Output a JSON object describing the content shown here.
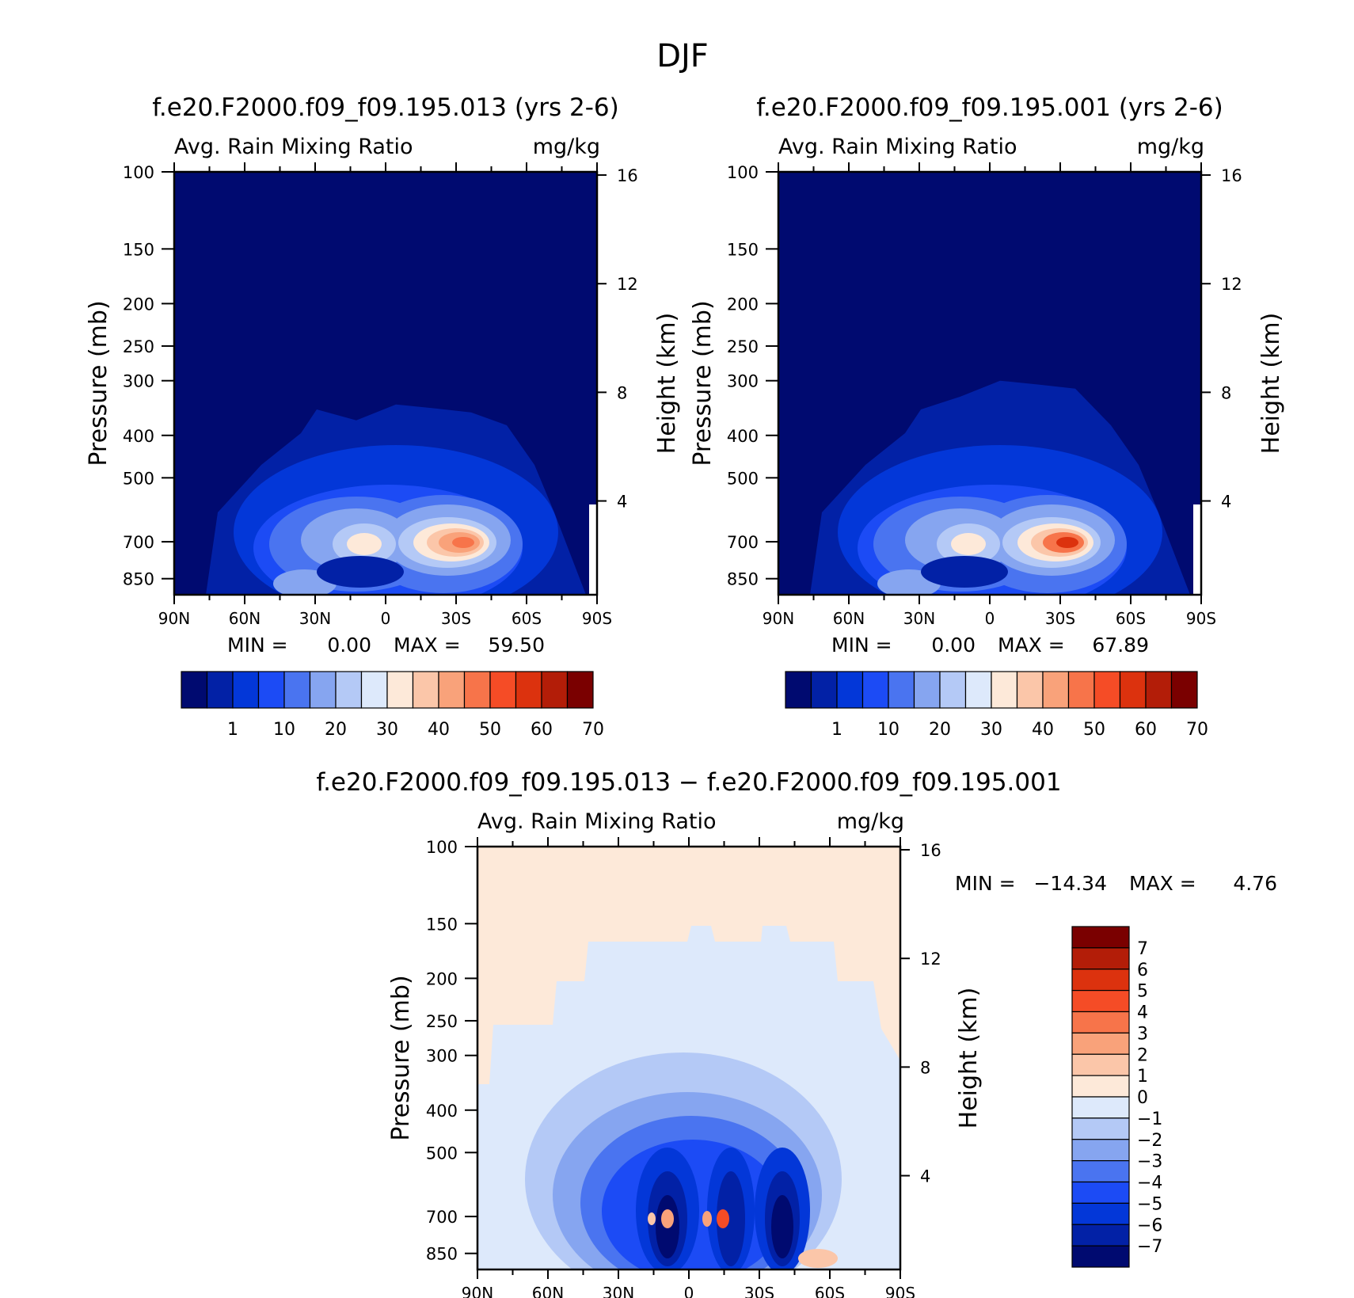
{
  "figure": {
    "title": "DJF",
    "panel_top_left_title": "f.e20.F2000.f09_f09.195.013 (yrs 2-6)",
    "panel_top_right_title": "f.e20.F2000.f09_f09.195.001 (yrs 2-6)",
    "panel_bottom_title": "f.e20.F2000.f09_f09.195.013 − f.e20.F2000.f09_f09.195.001"
  },
  "colors": {
    "abs_scale": [
      "#000a70",
      "#0221a6",
      "#0337d8",
      "#1c4bf5",
      "#4a74f0",
      "#86a5f0",
      "#b4c9f6",
      "#dde9fb",
      "#fde9d9",
      "#fbc6a9",
      "#f9a27a",
      "#f7744a",
      "#f54c26",
      "#dc320e",
      "#b31d08",
      "#7a0000"
    ],
    "diff_scale": [
      "#000a70",
      "#0221a6",
      "#0337d8",
      "#1c4bf5",
      "#4a74f0",
      "#86a5f0",
      "#b4c9f6",
      "#dde9fb",
      "#fde9d9",
      "#fbc6a9",
      "#f9a27a",
      "#f7744a",
      "#f54c26",
      "#dc320e",
      "#b31d08",
      "#7a0000"
    ]
  },
  "chart_data": [
    {
      "type": "heatmap",
      "title": "f.e20.F2000.f09_f09.195.013 (yrs 2-6)",
      "left_string": "Avg. Rain Mixing Ratio",
      "right_string": "mg/kg",
      "xlabel": "",
      "ylabel": "Pressure (mb)",
      "ylabel_right": "Height (km)",
      "x_ticks": [
        "90N",
        "60N",
        "30N",
        "0",
        "30S",
        "60S",
        "90S"
      ],
      "x_range": [
        90,
        -90
      ],
      "y_ticks": [
        100,
        150,
        200,
        250,
        300,
        400,
        500,
        700,
        850
      ],
      "y_range": [
        100,
        925
      ],
      "y_scale": "log",
      "height_ticks": [
        4,
        8,
        12,
        16
      ],
      "min_label": "MIN =",
      "min_value": "0.00",
      "max_label": "MAX =",
      "max_value": "59.50",
      "colorbar_labels": [
        "1",
        "10",
        "20",
        "30",
        "40",
        "50",
        "60",
        "70"
      ],
      "cloud_top_pressure": 340,
      "blobs": [
        {
          "lat": 10,
          "p": 700,
          "value": 40
        },
        {
          "lat": -25,
          "p": 700,
          "value": 59.5
        },
        {
          "lat": 35,
          "p": 820,
          "value": 18
        }
      ]
    },
    {
      "type": "heatmap",
      "title": "f.e20.F2000.f09_f09.195.001 (yrs 2-6)",
      "left_string": "Avg. Rain Mixing Ratio",
      "right_string": "mg/kg",
      "xlabel": "",
      "ylabel": "Pressure (mb)",
      "ylabel_right": "Height (km)",
      "x_ticks": [
        "90N",
        "60N",
        "30N",
        "0",
        "30S",
        "60S",
        "90S"
      ],
      "x_range": [
        90,
        -90
      ],
      "y_ticks": [
        100,
        150,
        200,
        250,
        300,
        400,
        500,
        700,
        850
      ],
      "y_range": [
        100,
        925
      ],
      "y_scale": "log",
      "height_ticks": [
        4,
        8,
        12,
        16
      ],
      "min_label": "MIN =",
      "min_value": "0.00",
      "max_label": "MAX =",
      "max_value": "67.89",
      "colorbar_labels": [
        "1",
        "10",
        "20",
        "30",
        "40",
        "50",
        "60",
        "70"
      ],
      "cloud_top_pressure": 300,
      "blobs": [
        {
          "lat": 12,
          "p": 700,
          "value": 40
        },
        {
          "lat": -30,
          "p": 700,
          "value": 67.89
        },
        {
          "lat": 35,
          "p": 820,
          "value": 20
        }
      ]
    },
    {
      "type": "heatmap",
      "title": "f.e20.F2000.f09_f09.195.013 − f.e20.F2000.f09_f09.195.001",
      "left_string": "Avg. Rain Mixing Ratio",
      "right_string": "mg/kg",
      "xlabel": "",
      "ylabel": "Pressure (mb)",
      "ylabel_right": "Height (km)",
      "x_ticks": [
        "90N",
        "60N",
        "30N",
        "0",
        "30S",
        "60S",
        "90S"
      ],
      "x_range": [
        90,
        -90
      ],
      "y_ticks": [
        100,
        150,
        200,
        250,
        300,
        400,
        500,
        700,
        850
      ],
      "y_range": [
        100,
        925
      ],
      "y_scale": "log",
      "height_ticks": [
        4,
        8,
        12,
        16
      ],
      "min_label": "MIN =",
      "min_value": "−14.34",
      "max_label": "MAX =",
      "max_value": "4.76",
      "colorbar_labels": [
        "7",
        "6",
        "5",
        "4",
        "3",
        "2",
        "1",
        "0",
        "−1",
        "−2",
        "−3",
        "−4",
        "−5",
        "−6",
        "−7"
      ],
      "negative_core_regions": [
        {
          "lat": 10,
          "p": 650,
          "value": -14.34
        },
        {
          "lat": -20,
          "p": 650,
          "value": -10
        },
        {
          "lat": -35,
          "p": 650,
          "value": -12
        }
      ],
      "positive_spots": [
        {
          "lat": 8,
          "p": 700,
          "value": 4.76
        },
        {
          "lat": -15,
          "p": 700,
          "value": 4.5
        }
      ]
    }
  ]
}
